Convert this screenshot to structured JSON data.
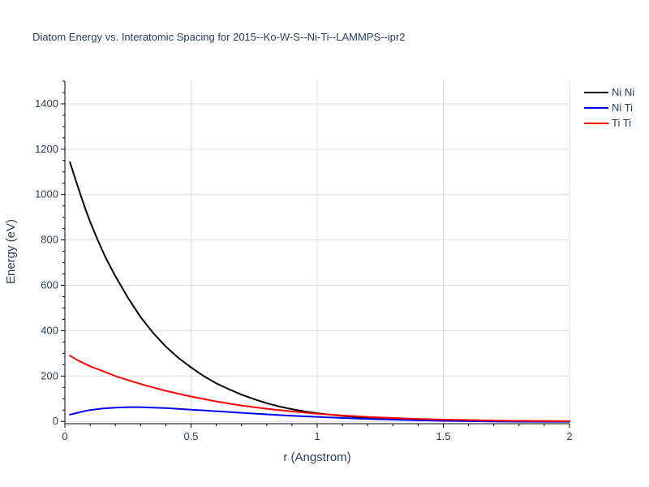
{
  "chart_data": {
    "type": "line",
    "title": "Diatom Energy vs. Interatomic Spacing for 2015--Ko-W-S--Ni-Ti--LAMMPS--ipr2",
    "xlabel": "r (Angstrom)",
    "ylabel": "Energy (eV)",
    "xlim": [
      0,
      2
    ],
    "ylim": [
      -10,
      1500
    ],
    "xticks": [
      0,
      0.5,
      1,
      1.5,
      2
    ],
    "xtick_labels": [
      "0",
      "0.5",
      "1",
      "1.5",
      "2"
    ],
    "yticks": [
      0,
      200,
      400,
      600,
      800,
      1000,
      1200,
      1400
    ],
    "ytick_labels": [
      "0",
      "200",
      "400",
      "600",
      "800",
      "1000",
      "1200",
      "1400"
    ],
    "grid": true,
    "legend_position": "top-right",
    "series": [
      {
        "name": "Ni Ni",
        "color": "#000000",
        "x": [
          0.02,
          0.05,
          0.08,
          0.1,
          0.13,
          0.16,
          0.2,
          0.25,
          0.3,
          0.35,
          0.4,
          0.45,
          0.5,
          0.55,
          0.6,
          0.65,
          0.7,
          0.75,
          0.8,
          0.85,
          0.9,
          0.95,
          1.0,
          1.1,
          1.2,
          1.3,
          1.4,
          1.5,
          1.6,
          1.7,
          1.8,
          1.9,
          2.0
        ],
        "y": [
          1143,
          1040,
          940,
          880,
          800,
          725,
          640,
          545,
          460,
          390,
          330,
          280,
          238,
          200,
          168,
          142,
          118,
          98,
          80,
          66,
          54,
          44,
          36,
          24,
          16,
          11,
          7,
          5,
          3,
          2,
          1.5,
          1,
          0.5
        ]
      },
      {
        "name": "Ni Ti",
        "color": "#0000ff",
        "x": [
          0.02,
          0.05,
          0.08,
          0.1,
          0.15,
          0.2,
          0.25,
          0.3,
          0.35,
          0.4,
          0.5,
          0.6,
          0.7,
          0.8,
          0.9,
          1.0,
          1.1,
          1.2,
          1.3,
          1.4,
          1.5,
          1.6,
          1.7,
          1.8,
          1.9,
          2.0
        ],
        "y": [
          30,
          38,
          46,
          50,
          57,
          61,
          63,
          63,
          61,
          59,
          52,
          45,
          38,
          31,
          25,
          20,
          15,
          11,
          8,
          5,
          2.5,
          1,
          0,
          -1,
          -1.5,
          -1.5
        ]
      },
      {
        "name": "Ti Ti",
        "color": "#ff0000",
        "x": [
          0.02,
          0.05,
          0.1,
          0.15,
          0.2,
          0.25,
          0.3,
          0.35,
          0.4,
          0.45,
          0.5,
          0.6,
          0.7,
          0.8,
          0.9,
          1.0,
          1.1,
          1.2,
          1.3,
          1.4,
          1.5,
          1.6,
          1.7,
          1.8,
          1.9,
          2.0
        ],
        "y": [
          290,
          270,
          243,
          222,
          200,
          182,
          165,
          150,
          135,
          122,
          110,
          88,
          70,
          56,
          44,
          34,
          26,
          20,
          15,
          11,
          8,
          6,
          4,
          2.5,
          1.5,
          1
        ]
      }
    ]
  }
}
